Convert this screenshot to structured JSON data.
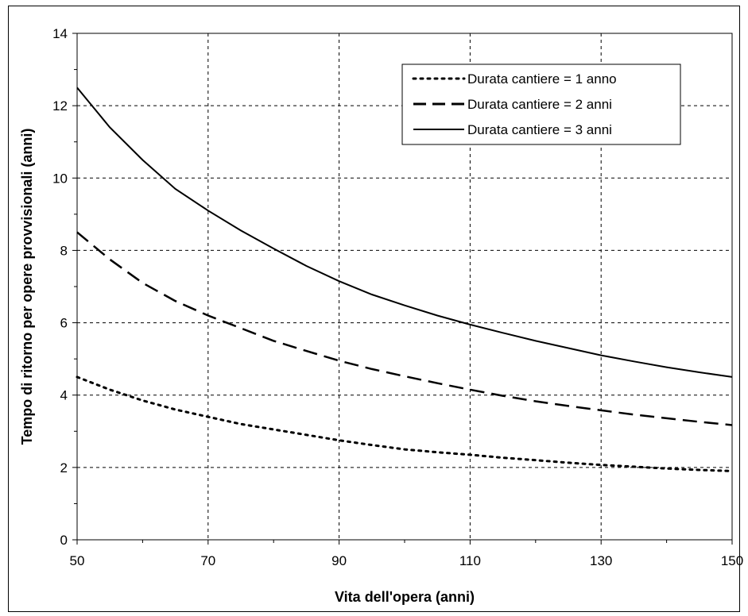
{
  "chart_data": {
    "type": "line",
    "title": "",
    "xlabel": "Vita dell'opera (anni)",
    "ylabel": "Tempo di ritorno per opere provvisionali (anni)",
    "xlim": [
      50,
      150
    ],
    "ylim": [
      0,
      14
    ],
    "x_ticks": [
      50,
      70,
      90,
      110,
      130,
      150
    ],
    "y_ticks": [
      0,
      2,
      4,
      6,
      8,
      10,
      12,
      14
    ],
    "grid": true,
    "legend_position": "top-right",
    "series": [
      {
        "name": "Durata cantiere = 1 anno",
        "style": "dotted",
        "x": [
          50,
          55,
          60,
          65,
          70,
          75,
          80,
          85,
          90,
          95,
          100,
          105,
          110,
          115,
          120,
          125,
          130,
          135,
          140,
          145,
          150
        ],
        "y": [
          4.5,
          4.15,
          3.85,
          3.6,
          3.4,
          3.2,
          3.05,
          2.9,
          2.75,
          2.62,
          2.5,
          2.42,
          2.35,
          2.27,
          2.2,
          2.13,
          2.07,
          2.02,
          1.97,
          1.93,
          1.9
        ]
      },
      {
        "name": "Durata cantiere = 2 anni",
        "style": "dashed",
        "x": [
          50,
          55,
          60,
          65,
          70,
          75,
          80,
          85,
          90,
          95,
          100,
          105,
          110,
          115,
          120,
          125,
          130,
          135,
          140,
          145,
          150
        ],
        "y": [
          8.5,
          7.75,
          7.1,
          6.6,
          6.2,
          5.85,
          5.5,
          5.22,
          4.95,
          4.72,
          4.52,
          4.33,
          4.15,
          3.98,
          3.83,
          3.7,
          3.58,
          3.46,
          3.36,
          3.26,
          3.17
        ]
      },
      {
        "name": "Durata cantiere = 3 anni",
        "style": "solid",
        "x": [
          50,
          55,
          60,
          65,
          70,
          75,
          80,
          85,
          90,
          95,
          100,
          105,
          110,
          115,
          120,
          125,
          130,
          135,
          140,
          145,
          150
        ],
        "y": [
          12.5,
          11.4,
          10.5,
          9.7,
          9.1,
          8.55,
          8.05,
          7.57,
          7.15,
          6.78,
          6.48,
          6.2,
          5.95,
          5.72,
          5.5,
          5.3,
          5.1,
          4.93,
          4.77,
          4.63,
          4.5
        ]
      }
    ],
    "colors": {
      "line": "#000000",
      "grid": "#000000",
      "background": "#ffffff"
    }
  }
}
